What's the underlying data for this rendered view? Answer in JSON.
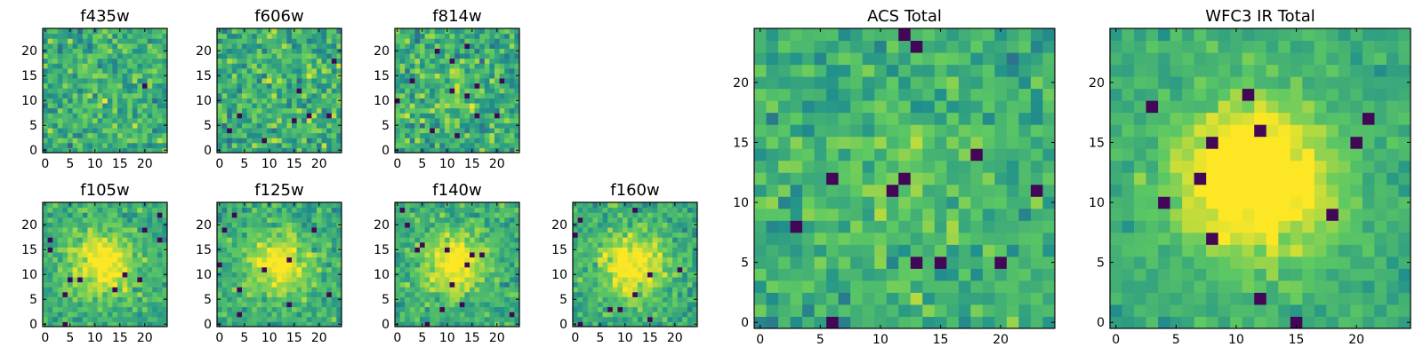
{
  "chart_data": [
    {
      "id": "f435w",
      "type": "heatmap",
      "title": "f435w",
      "size": 25,
      "peak": 0.05,
      "width": 5,
      "noise": 0.22,
      "seed": 11,
      "dark": 0.01,
      "xticks": [
        0,
        5,
        10,
        15,
        20
      ],
      "xtick_labels": [
        "0",
        "5",
        "10",
        "15",
        "20"
      ],
      "yticks": [
        0,
        5,
        10,
        15,
        20
      ],
      "ytick_labels": [
        "0",
        "5",
        "10",
        "15",
        "20"
      ],
      "xlim": [
        -0.5,
        24.5
      ],
      "ylim": [
        -0.5,
        24.5
      ]
    },
    {
      "id": "f606w",
      "type": "heatmap",
      "title": "f606w",
      "size": 25,
      "peak": 0.05,
      "width": 5,
      "noise": 0.24,
      "seed": 23,
      "dark": 0.015,
      "xticks": [
        0,
        5,
        10,
        15,
        20
      ],
      "xtick_labels": [
        "0",
        "5",
        "10",
        "15",
        "20"
      ],
      "yticks": [
        0,
        5,
        10,
        15,
        20
      ],
      "ytick_labels": [
        "0",
        "5",
        "10",
        "15",
        "20"
      ],
      "xlim": [
        -0.5,
        24.5
      ],
      "ylim": [
        -0.5,
        24.5
      ]
    },
    {
      "id": "f814w",
      "type": "heatmap",
      "title": "f814w",
      "size": 25,
      "peak": 0.12,
      "width": 4,
      "noise": 0.24,
      "seed": 37,
      "dark": 0.02,
      "xticks": [
        0,
        5,
        10,
        15,
        20
      ],
      "xtick_labels": [
        "0",
        "5",
        "10",
        "15",
        "20"
      ],
      "yticks": [
        0,
        5,
        10,
        15,
        20
      ],
      "ytick_labels": [
        "0",
        "5",
        "10",
        "15",
        "20"
      ],
      "xlim": [
        -0.5,
        24.5
      ],
      "ylim": [
        -0.5,
        24.5
      ]
    },
    {
      "id": "f105w",
      "type": "heatmap",
      "title": "f105w",
      "size": 25,
      "peak": 0.45,
      "width": 4.5,
      "noise": 0.16,
      "seed": 41,
      "dark": 0.015,
      "xticks": [
        0,
        5,
        10,
        15,
        20
      ],
      "xtick_labels": [
        "0",
        "5",
        "10",
        "15",
        "20"
      ],
      "yticks": [
        0,
        5,
        10,
        15,
        20
      ],
      "ytick_labels": [
        "0",
        "5",
        "10",
        "15",
        "20"
      ],
      "xlim": [
        -0.5,
        24.5
      ],
      "ylim": [
        -0.5,
        24.5
      ]
    },
    {
      "id": "f125w",
      "type": "heatmap",
      "title": "f125w",
      "size": 25,
      "peak": 0.4,
      "width": 4.5,
      "noise": 0.17,
      "seed": 53,
      "dark": 0.02,
      "xticks": [
        0,
        5,
        10,
        15,
        20
      ],
      "xtick_labels": [
        "0",
        "5",
        "10",
        "15",
        "20"
      ],
      "yticks": [
        0,
        5,
        10,
        15,
        20
      ],
      "ytick_labels": [
        "0",
        "5",
        "10",
        "15",
        "20"
      ],
      "xlim": [
        -0.5,
        24.5
      ],
      "ylim": [
        -0.5,
        24.5
      ]
    },
    {
      "id": "f140w",
      "type": "heatmap",
      "title": "f140w",
      "size": 25,
      "peak": 0.45,
      "width": 4.5,
      "noise": 0.17,
      "seed": 67,
      "dark": 0.02,
      "xticks": [
        0,
        5,
        10,
        15,
        20
      ],
      "xtick_labels": [
        "0",
        "5",
        "10",
        "15",
        "20"
      ],
      "yticks": [
        0,
        5,
        10,
        15,
        20
      ],
      "ytick_labels": [
        "0",
        "5",
        "10",
        "15",
        "20"
      ],
      "xlim": [
        -0.5,
        24.5
      ],
      "ylim": [
        -0.5,
        24.5
      ]
    },
    {
      "id": "f160w",
      "type": "heatmap",
      "title": "f160w",
      "size": 25,
      "peak": 0.45,
      "width": 4.5,
      "noise": 0.17,
      "seed": 79,
      "dark": 0.02,
      "xticks": [
        0,
        5,
        10,
        15,
        20
      ],
      "xtick_labels": [
        "0",
        "5",
        "10",
        "15",
        "20"
      ],
      "yticks": [
        0,
        5,
        10,
        15,
        20
      ],
      "ytick_labels": [
        "0",
        "5",
        "10",
        "15",
        "20"
      ],
      "xlim": [
        -0.5,
        24.5
      ],
      "ylim": [
        -0.5,
        24.5
      ]
    },
    {
      "id": "acs_total",
      "type": "heatmap",
      "title": "ACS Total",
      "size": 25,
      "peak": 0.1,
      "width": 5,
      "noise": 0.18,
      "seed": 97,
      "dark": 0.02,
      "xticks": [
        0,
        5,
        10,
        15,
        20
      ],
      "xtick_labels": [
        "0",
        "5",
        "10",
        "15",
        "20"
      ],
      "yticks": [
        0,
        5,
        10,
        15,
        20
      ],
      "ytick_labels": [
        "0",
        "5",
        "10",
        "15",
        "20"
      ],
      "xlim": [
        -0.5,
        24.5
      ],
      "ylim": [
        -0.5,
        24.5
      ]
    },
    {
      "id": "wfc3_ir_total",
      "type": "heatmap",
      "title": "WFC3 IR Total",
      "size": 25,
      "peak": 0.6,
      "width": 4.5,
      "noise": 0.11,
      "seed": 113,
      "dark": 0.02,
      "xticks": [
        0,
        5,
        10,
        15,
        20
      ],
      "xtick_labels": [
        "0",
        "5",
        "10",
        "15",
        "20"
      ],
      "yticks": [
        0,
        5,
        10,
        15,
        20
      ],
      "ytick_labels": [
        "0",
        "5",
        "10",
        "15",
        "20"
      ],
      "xlim": [
        -0.5,
        24.5
      ],
      "ylim": [
        -0.5,
        24.5
      ]
    }
  ],
  "colormap": [
    "#440154",
    "#3b528b",
    "#21918c",
    "#5ec962",
    "#fde725"
  ],
  "center": [
    11.5,
    12
  ]
}
